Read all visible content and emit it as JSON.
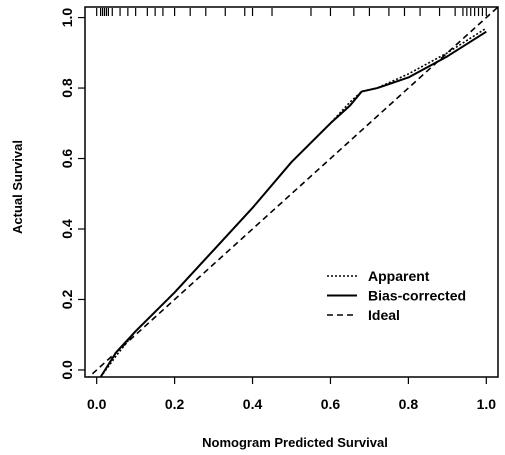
{
  "chart_data": {
    "type": "line",
    "xlabel": "Nomogram Predicted Survival",
    "ylabel": "Actual Survival",
    "xlim": [
      -0.03,
      1.03
    ],
    "ylim": [
      -0.02,
      1.03
    ],
    "xticks": [
      "0.0",
      "0.2",
      "0.4",
      "0.6",
      "0.8",
      "1.0"
    ],
    "yticks": [
      "0.0",
      "0.2",
      "0.4",
      "0.6",
      "0.8",
      "1.0"
    ],
    "grid": false,
    "legend_position": "bottom-right",
    "series": [
      {
        "name": "Apparent",
        "style": "dotted",
        "x": [
          0.01,
          0.05,
          0.1,
          0.2,
          0.3,
          0.4,
          0.5,
          0.6,
          0.65,
          0.68,
          0.72,
          0.8,
          0.9,
          1.0
        ],
        "y": [
          -0.02,
          0.04,
          0.11,
          0.22,
          0.34,
          0.46,
          0.59,
          0.7,
          0.76,
          0.79,
          0.8,
          0.84,
          0.9,
          0.97
        ]
      },
      {
        "name": "Bias-corrected",
        "style": "solid",
        "x": [
          0.01,
          0.05,
          0.1,
          0.2,
          0.3,
          0.4,
          0.5,
          0.6,
          0.65,
          0.68,
          0.72,
          0.8,
          0.9,
          1.0
        ],
        "y": [
          -0.02,
          0.05,
          0.11,
          0.22,
          0.34,
          0.46,
          0.59,
          0.7,
          0.75,
          0.79,
          0.8,
          0.83,
          0.89,
          0.96
        ]
      },
      {
        "name": "Ideal",
        "style": "dashed",
        "x": [
          -0.03,
          1.03
        ],
        "y": [
          -0.03,
          1.03
        ]
      }
    ],
    "rug_x": [
      0.0,
      0.01,
      0.015,
      0.02,
      0.025,
      0.03,
      0.04,
      0.06,
      0.08,
      0.1,
      0.13,
      0.15,
      0.17,
      0.2,
      0.24,
      0.28,
      0.33,
      0.38,
      0.4,
      0.45,
      0.55,
      0.6,
      0.66,
      0.7,
      0.75,
      0.79,
      0.83,
      0.88,
      0.92,
      0.94,
      0.95,
      0.96,
      0.97,
      0.98,
      0.99,
      1.0
    ]
  }
}
